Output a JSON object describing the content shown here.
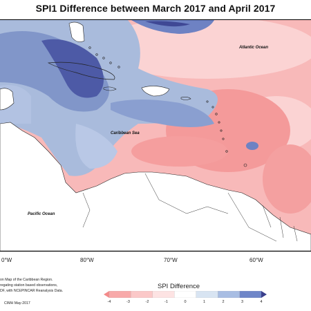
{
  "title": "SPI1 Difference between March 2017 and April 2017",
  "labels": {
    "atlantic": "Atlantic Ocean",
    "caribbean": "Caribbean Sea",
    "pacific": "Pacific Ocean"
  },
  "longitudes": [
    "0°W",
    "80°W",
    "70°W",
    "60°W"
  ],
  "credits": [
    "on Map of the Caribbean Region.",
    "regating station based observations,",
    "DF, with NCEPINCAR Reanalysis Data.",
    "CIMH May-2017"
  ],
  "legend": {
    "title": "SPI Difference",
    "ticks": [
      "-4",
      "-3",
      "-2",
      "-1",
      "0",
      "1",
      "2",
      "3",
      "4"
    ],
    "colors": [
      "#f48a8a",
      "#f8a9a9",
      "#fbc8c8",
      "#fde3e3",
      "#ffffff",
      "#d8e4f2",
      "#a8bde3",
      "#6f86c8",
      "#3a3f8c"
    ]
  }
}
